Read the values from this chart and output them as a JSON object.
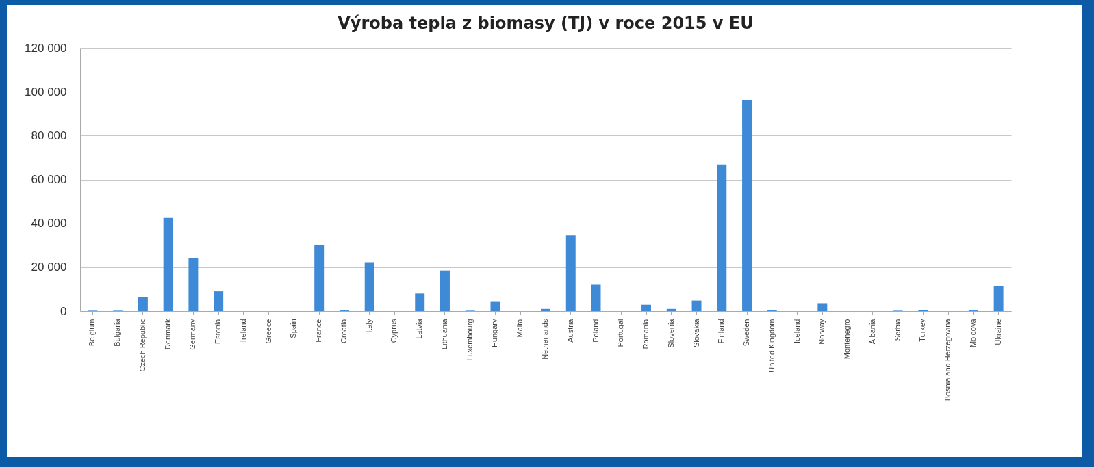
{
  "chart_data": {
    "type": "bar",
    "title": "Výroba tepla z biomasy (TJ) v roce 2015 v EU",
    "categories": [
      "Belgium",
      "Bulgaria",
      "Czech Republic",
      "Denmark",
      "Germany",
      "Estonia",
      "Ireland",
      "Greece",
      "Spain",
      "France",
      "Croatia",
      "Italy",
      "Cyprus",
      "Latvia",
      "Lithuania",
      "Luxembourg",
      "Hungary",
      "Malta",
      "Netherlands",
      "Austria",
      "Poland",
      "Portugal",
      "Romania",
      "Slovenia",
      "Slovakia",
      "Finland",
      "Sweden",
      "United Kingdom",
      "Iceland",
      "Norway",
      "Montenegro",
      "Albania",
      "Serbia",
      "Turkey",
      "Bosnia and Herzegovina",
      "Moldova",
      "Ukraine"
    ],
    "values": [
      200,
      200,
      6300,
      42500,
      24300,
      9000,
      0,
      0,
      0,
      30100,
      300,
      22300,
      0,
      8000,
      18500,
      200,
      4500,
      0,
      1000,
      34500,
      12000,
      0,
      2900,
      1000,
      4800,
      66800,
      96300,
      300,
      0,
      3600,
      0,
      0,
      200,
      500,
      0,
      300,
      11500
    ],
    "color": "#3f8ad6",
    "ylim": [
      0,
      120000
    ],
    "yticks": [
      {
        "value": 0,
        "label": "0"
      },
      {
        "value": 20000,
        "label": "20 000"
      },
      {
        "value": 40000,
        "label": "40 000"
      },
      {
        "value": 60000,
        "label": "60 000"
      },
      {
        "value": 80000,
        "label": "80 000"
      },
      {
        "value": 100000,
        "label": "100 000"
      },
      {
        "value": 120000,
        "label": "120 000"
      }
    ],
    "grid": "y"
  }
}
